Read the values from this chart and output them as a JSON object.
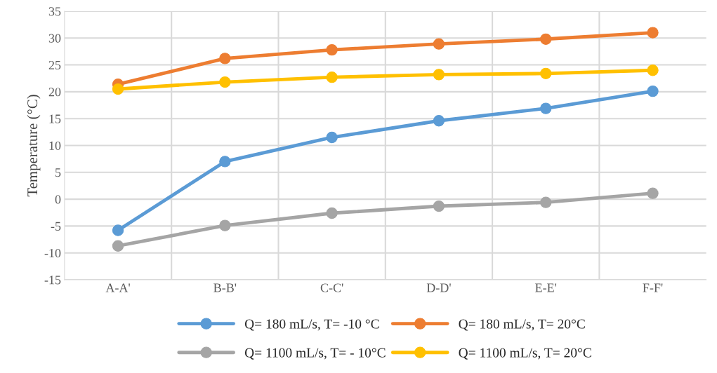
{
  "chart_data": {
    "type": "line",
    "ylabel": "Temperature (°C)",
    "categories": [
      "A-A'",
      "B-B'",
      "C-C'",
      "D-D'",
      "E-E'",
      "F-F'"
    ],
    "series": [
      {
        "name": "Q= 180 mL/s, T= -10 °C",
        "color": "#5b9bd5",
        "values": [
          -5.8,
          7.0,
          11.5,
          14.6,
          16.9,
          20.1
        ]
      },
      {
        "name": "Q= 180 mL/s, T= 20°C",
        "color": "#ed7d31",
        "values": [
          21.4,
          26.2,
          27.8,
          28.9,
          29.8,
          31.0
        ]
      },
      {
        "name": "Q= 1100 mL/s, T= - 10°C",
        "color": "#a5a5a5",
        "values": [
          -8.7,
          -4.9,
          -2.6,
          -1.3,
          -0.6,
          1.1
        ]
      },
      {
        "name": "Q= 1100 mL/s, T= 20°C",
        "color": "#ffc000",
        "values": [
          20.5,
          21.8,
          22.7,
          23.2,
          23.4,
          24.0
        ]
      }
    ],
    "ylim": [
      -15,
      35
    ],
    "yticks": [
      -15,
      -10,
      -5,
      0,
      5,
      10,
      15,
      20,
      25,
      30,
      35
    ],
    "grid": true,
    "legend": "bottom",
    "marker": "circle",
    "line_style": "solid"
  }
}
